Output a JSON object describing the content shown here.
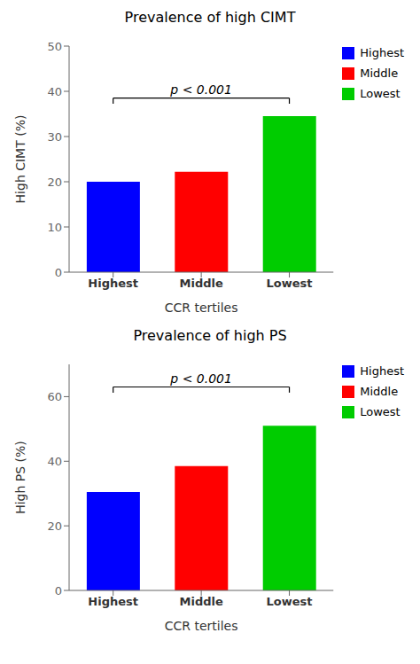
{
  "chart_data": [
    {
      "type": "bar",
      "title": "Prevalence of high CIMT",
      "categories": [
        "Highest",
        "Middle",
        "Lowest"
      ],
      "values": [
        20.0,
        22.2,
        34.5
      ],
      "colors": [
        "#0000FF",
        "#FF0000",
        "#00CC00"
      ],
      "xlabel": "CCR tertiles",
      "ylabel": "High CIMT (%)",
      "ylim": [
        0,
        50
      ],
      "yticks": [
        0,
        10,
        20,
        30,
        40,
        50
      ],
      "bracket": {
        "from": "Highest",
        "to": "Lowest",
        "y": 38.5,
        "label": "p < 0.001"
      },
      "legend": "right"
    },
    {
      "type": "bar",
      "title": "Prevalence of high PS",
      "categories": [
        "Highest",
        "Middle",
        "Lowest"
      ],
      "values": [
        30.5,
        38.5,
        51.0
      ],
      "colors": [
        "#0000FF",
        "#FF0000",
        "#00CC00"
      ],
      "xlabel": "CCR tertiles",
      "ylabel": "High PS (%)",
      "ylim": [
        0,
        70
      ],
      "yticks": [
        0,
        20,
        40,
        60
      ],
      "bracket": {
        "from": "Highest",
        "to": "Lowest",
        "y": 63.0,
        "label": "p < 0.001"
      },
      "legend": "right"
    }
  ]
}
